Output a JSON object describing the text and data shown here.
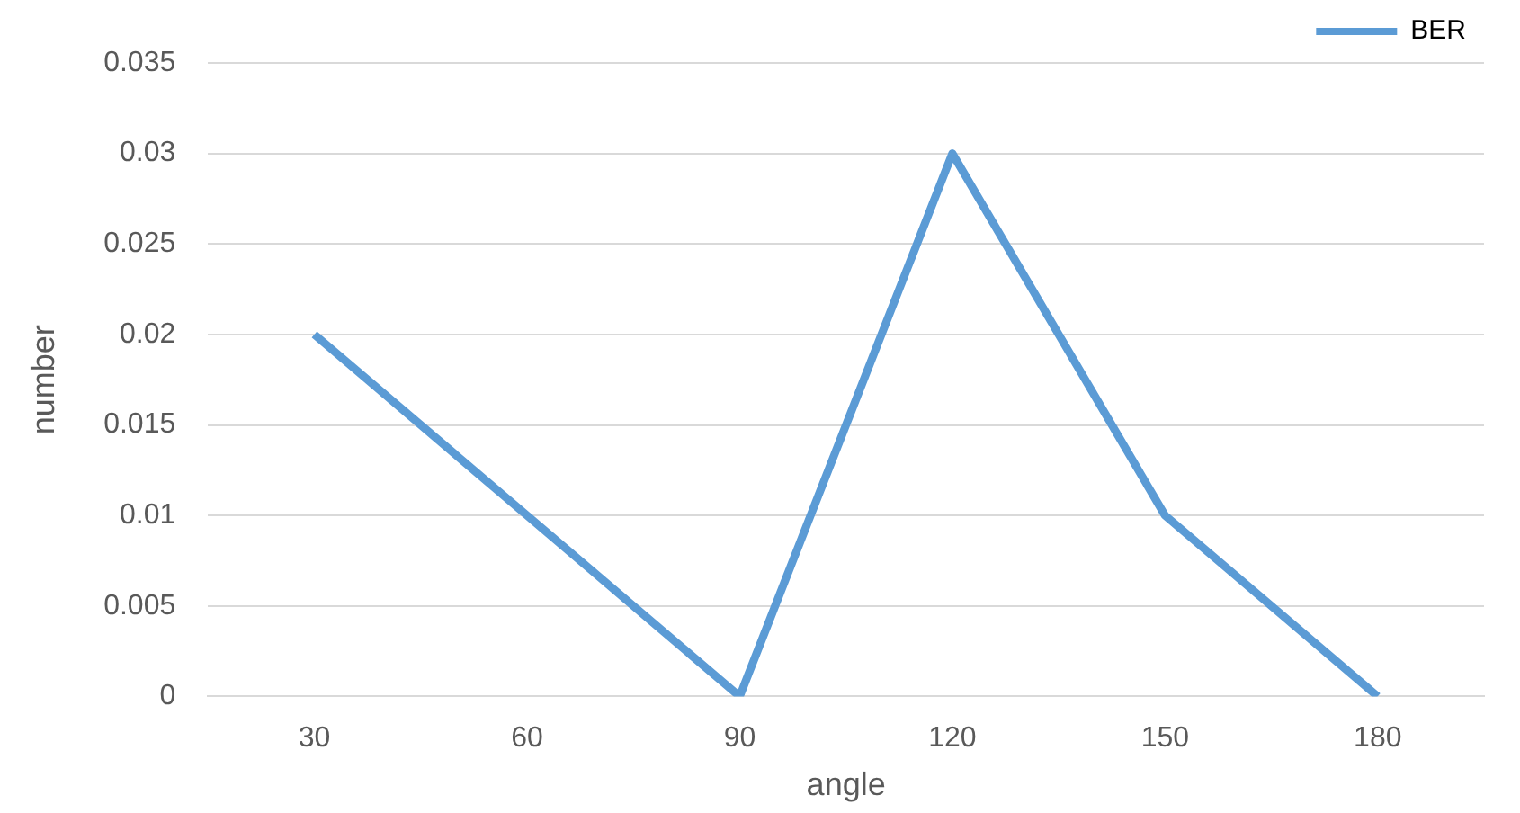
{
  "chart_data": {
    "type": "line",
    "xlabel": "angle",
    "ylabel": "number",
    "categories": [
      "30",
      "60",
      "90",
      "120",
      "150",
      "180"
    ],
    "series": [
      {
        "name": "BER",
        "color": "#5b9bd5",
        "values": [
          0.02,
          0.01,
          0,
          0.03,
          0.01,
          0
        ]
      }
    ],
    "ylim": [
      0,
      0.035
    ],
    "yticks": [
      0,
      0.005,
      0.01,
      0.015,
      0.02,
      0.025,
      0.03,
      0.035
    ],
    "grid": "y",
    "legend": "top right",
    "marker": "none",
    "line_style": "solid"
  }
}
